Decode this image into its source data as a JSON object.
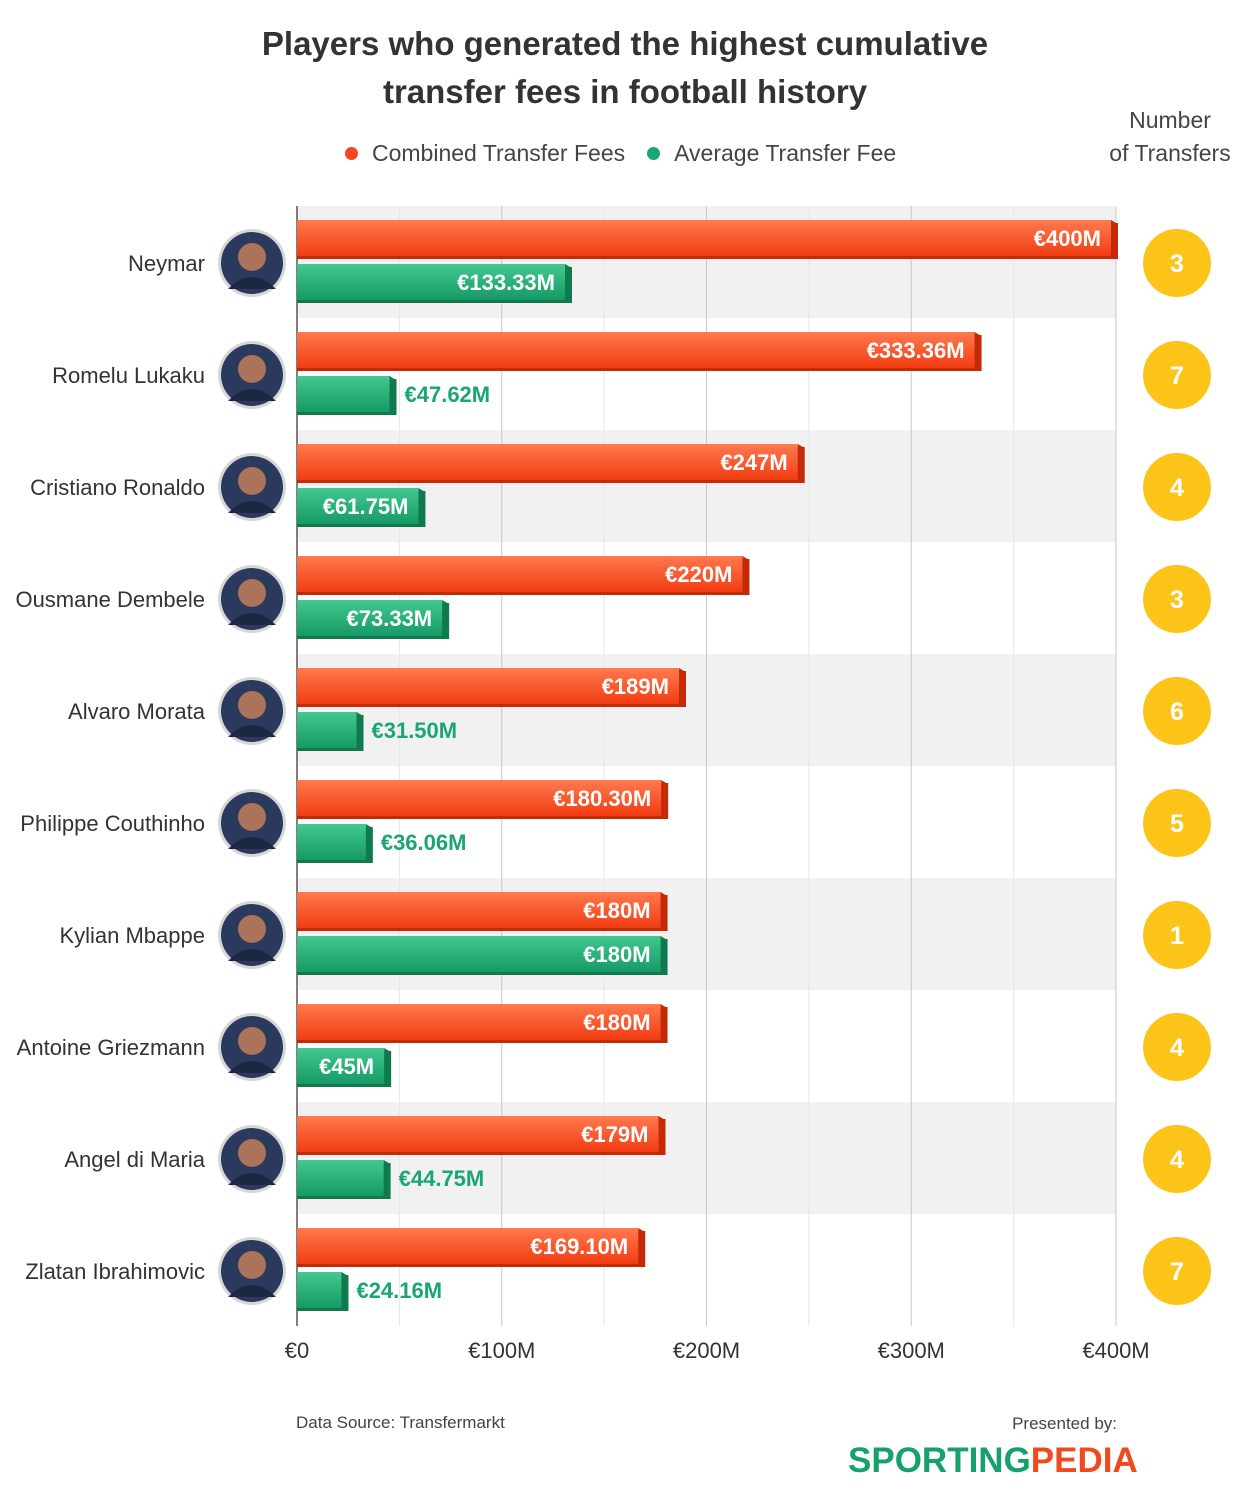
{
  "title_line1": "Players who generated the highest cumulative",
  "title_line2": "transfer fees in football history",
  "legend": {
    "combined": "Combined Transfer Fees",
    "average": "Average Transfer Fee"
  },
  "number_of_transfers_title_line1": "Number",
  "number_of_transfers_title_line2": "of Transfers",
  "colors": {
    "combined": "#f2481b",
    "average": "#1aa672",
    "badge": "#fcc419",
    "band": "#f1f1f1"
  },
  "footer": {
    "source": "Data Source: Transfermarkt",
    "presented_by": "Presented by:",
    "brand_part1": "SPORTING",
    "brand_part2": "PEDIA"
  },
  "chart_data": {
    "type": "bar",
    "orientation": "horizontal",
    "xlim": [
      0,
      400
    ],
    "x_ticks": [
      "€0",
      "€100M",
      "€200M",
      "€300M",
      "€400M"
    ],
    "x_tick_values": [
      0,
      100,
      200,
      300,
      400
    ],
    "categories": [
      "Neymar",
      "Romelu Lukaku",
      "Cristiano Ronaldo",
      "Ousmane Dembele",
      "Alvaro Morata",
      "Philippe Couthinho",
      "Kylian Mbappe",
      "Antoine Griezmann",
      "Angel di Maria",
      "Zlatan Ibrahimovic"
    ],
    "series": [
      {
        "name": "Combined Transfer Fees",
        "values": [
          400,
          333.36,
          247,
          220,
          189,
          180.3,
          180,
          180,
          179,
          169.1
        ],
        "labels": [
          "€400M",
          "€333.36M",
          "€247M",
          "€220M",
          "€189M",
          "€180.30M",
          "€180M",
          "€180M",
          "€179M",
          "€169.10M"
        ]
      },
      {
        "name": "Average Transfer Fee",
        "values": [
          133.33,
          47.62,
          61.75,
          73.33,
          31.5,
          36.06,
          180,
          45,
          44.75,
          24.16
        ],
        "labels": [
          "€133.33M",
          "€47.62M",
          "€61.75M",
          "€73.33M",
          "€31.50M",
          "€36.06M",
          "€180M",
          "€45M",
          "€44.75M",
          "€24.16M"
        ]
      }
    ],
    "number_of_transfers": [
      3,
      7,
      4,
      3,
      6,
      5,
      1,
      4,
      4,
      7
    ],
    "grid": true,
    "legend_position": "top"
  }
}
